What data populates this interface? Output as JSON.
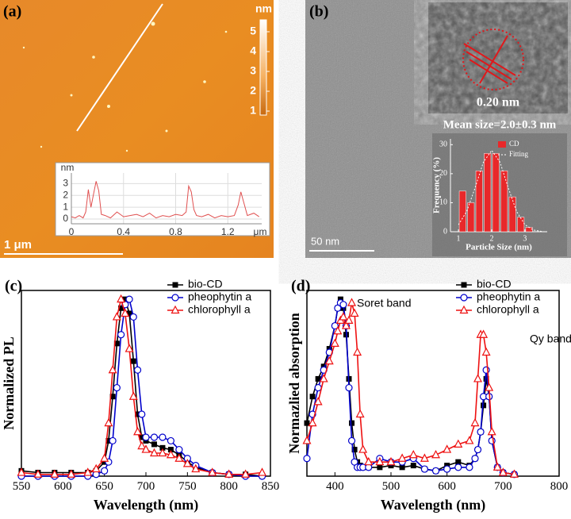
{
  "panel_labels": [
    "(a)",
    "(b)",
    "(c)",
    "(d)"
  ],
  "afm": {
    "colorbar_label": "nm",
    "colorbar_ticks": [
      1,
      2,
      3,
      4,
      5
    ],
    "colorbar_lim": [
      0.8,
      5.6
    ],
    "scale_bar": "1 μm"
  },
  "tem": {
    "scale_bar": "50 nm",
    "lattice_spacing": "0.20 nm",
    "mean_size": "Mean size=2.0±0.3 nm"
  },
  "chart_data": [
    {
      "type": "line",
      "ylabel": "nm",
      "xlabel": "μm",
      "color": "#e05050",
      "grid": true,
      "x": [
        0,
        0.03,
        0.06,
        0.09,
        0.11,
        0.13,
        0.15,
        0.17,
        0.19,
        0.21,
        0.23,
        0.26,
        0.3,
        0.35,
        0.4,
        0.45,
        0.5,
        0.55,
        0.6,
        0.65,
        0.7,
        0.75,
        0.8,
        0.85,
        0.88,
        0.9,
        0.92,
        0.94,
        0.96,
        1.0,
        1.05,
        1.1,
        1.15,
        1.2,
        1.25,
        1.28,
        1.3,
        1.32,
        1.35,
        1.4,
        1.44
      ],
      "values": [
        0.2,
        0.1,
        0.3,
        0.1,
        0.6,
        2.5,
        1.0,
        2.1,
        3.2,
        2.4,
        0.4,
        0.3,
        0.1,
        0.6,
        0.2,
        0.3,
        0.4,
        0.2,
        0.5,
        0.1,
        0.3,
        0.2,
        0.4,
        0.3,
        0.6,
        2.8,
        2.3,
        0.8,
        0.3,
        0.2,
        0.4,
        0.1,
        0.3,
        0.2,
        0.3,
        1.2,
        2.3,
        1.5,
        0.3,
        0.5,
        0.2
      ],
      "xlim": [
        0,
        1.46
      ],
      "ylim": [
        -0.4,
        3.9
      ],
      "xticks": [
        0,
        0.4,
        0.8,
        1.2
      ],
      "yticks": [
        0,
        1,
        2,
        3
      ]
    },
    {
      "type": "histogram",
      "name": "CD",
      "color": "#e8282a",
      "xlabel": "Particle Size (nm)",
      "ylabel": "Frequency (%)",
      "bins": [
        1.0,
        1.25,
        1.5,
        1.75,
        2.0,
        2.25,
        2.5,
        2.75,
        3.0,
        3.25
      ],
      "values": [
        14,
        10,
        21,
        27,
        27,
        21,
        12,
        5,
        1.5
      ],
      "fit": {
        "name": "Fitting",
        "x": [
          1.0,
          1.25,
          1.5,
          1.75,
          2.0,
          2.25,
          2.5,
          2.75,
          3.0,
          3.25,
          3.5
        ],
        "values": [
          2.4,
          7.0,
          15.1,
          24.0,
          28,
          24.0,
          15.1,
          7.0,
          2.4,
          0.6,
          0.1
        ]
      },
      "xlim": [
        0.76,
        3.67
      ],
      "ylim": [
        0,
        32
      ],
      "xticks": [
        1,
        2,
        3
      ],
      "yticks": [
        0,
        10,
        20,
        30
      ]
    },
    {
      "type": "line",
      "xlabel": "Wavelength (nm)",
      "ylabel": "Normalized PL",
      "legend": "upper right",
      "x": [
        550,
        570,
        590,
        610,
        630,
        640,
        650,
        655,
        660,
        665,
        670,
        675,
        680,
        685,
        690,
        695,
        700,
        710,
        720,
        730,
        740,
        750,
        760,
        780,
        800,
        820,
        840
      ],
      "series": [
        {
          "name": "bio-CD",
          "color": "#000000",
          "marker": "square",
          "values": [
            0.03,
            0.02,
            0.02,
            0.02,
            0.02,
            0.03,
            0.08,
            0.2,
            0.45,
            0.75,
            0.95,
            1.0,
            0.92,
            0.65,
            0.35,
            0.22,
            0.2,
            0.18,
            0.16,
            0.15,
            0.12,
            0.08,
            0.05,
            0.02,
            0.01,
            0.01,
            0.0
          ]
        },
        {
          "name": "pheophytin a",
          "color": "#0000cc",
          "marker": "circle",
          "values": [
            0,
            0,
            0,
            0,
            0,
            0.01,
            0.03,
            0.08,
            0.2,
            0.5,
            0.8,
            0.97,
            1.0,
            0.9,
            0.6,
            0.35,
            0.22,
            0.22,
            0.22,
            0.2,
            0.15,
            0.1,
            0.06,
            0.02,
            0.01,
            0,
            0
          ]
        },
        {
          "name": "chlorophyll a",
          "color": "#ee1111",
          "marker": "triangle",
          "values": [
            0.02,
            0.01,
            0.01,
            0.01,
            0.02,
            0.04,
            0.1,
            0.3,
            0.6,
            0.9,
            1.0,
            0.92,
            0.72,
            0.45,
            0.25,
            0.17,
            0.15,
            0.13,
            0.13,
            0.12,
            0.1,
            0.07,
            0.04,
            0.02,
            0.01,
            0.01,
            0.02
          ]
        }
      ],
      "xlim": [
        550,
        850
      ],
      "ylim": [
        0,
        1.05
      ],
      "xticks": [
        550,
        600,
        650,
        700,
        750,
        800,
        850
      ]
    },
    {
      "type": "line",
      "xlabel": "Wavelength (nm)",
      "ylabel": "Normazlied absorption",
      "legend": "upper right",
      "annotations": [
        "Soret band",
        "Qy band"
      ],
      "x": [
        350,
        360,
        370,
        380,
        390,
        400,
        405,
        410,
        415,
        420,
        425,
        430,
        435,
        440,
        445,
        450,
        460,
        480,
        500,
        520,
        540,
        560,
        580,
        600,
        620,
        640,
        650,
        655,
        660,
        665,
        670,
        675,
        680,
        690,
        700,
        720
      ],
      "series": [
        {
          "name": "bio-CD",
          "color": "#000000",
          "marker": "square",
          "values": [
            0.3,
            0.45,
            0.55,
            0.62,
            0.72,
            0.85,
            0.95,
            1.0,
            0.95,
            0.8,
            0.55,
            0.3,
            0.15,
            0.08,
            0.06,
            0.05,
            0.05,
            0.05,
            0.06,
            0.05,
            0.06,
            0.04,
            0.03,
            0.06,
            0.08,
            0.06,
            0.1,
            0.15,
            0.25,
            0.4,
            0.55,
            0.45,
            0.2,
            0.05,
            0.02,
            0.01
          ]
        },
        {
          "name": "pheophytin a",
          "color": "#0000cc",
          "marker": "circle",
          "values": [
            0.1,
            0.35,
            0.5,
            0.6,
            0.7,
            0.85,
            0.95,
            0.98,
            0.97,
            0.85,
            0.5,
            0.2,
            0.08,
            0.05,
            0.05,
            0.05,
            0.05,
            0.1,
            0.08,
            0.08,
            0.1,
            0.04,
            0.03,
            0.04,
            0.05,
            0.05,
            0.1,
            0.15,
            0.25,
            0.45,
            0.6,
            0.45,
            0.2,
            0.05,
            0.02,
            0.01
          ]
        },
        {
          "name": "chlorophyll a",
          "color": "#ee1111",
          "marker": "triangle",
          "values": [
            0.2,
            0.3,
            0.42,
            0.55,
            0.65,
            0.75,
            0.82,
            0.88,
            0.9,
            0.85,
            0.88,
            0.98,
            0.92,
            0.7,
            0.35,
            0.15,
            0.08,
            0.08,
            0.08,
            0.1,
            0.12,
            0.1,
            0.12,
            0.15,
            0.18,
            0.2,
            0.3,
            0.55,
            0.8,
            0.8,
            0.7,
            0.5,
            0.25,
            0.05,
            0.02,
            0.01
          ]
        }
      ],
      "xlim": [
        350,
        800
      ],
      "ylim": [
        0,
        1.05
      ],
      "xticks": [
        400,
        500,
        600,
        700,
        800
      ]
    }
  ]
}
